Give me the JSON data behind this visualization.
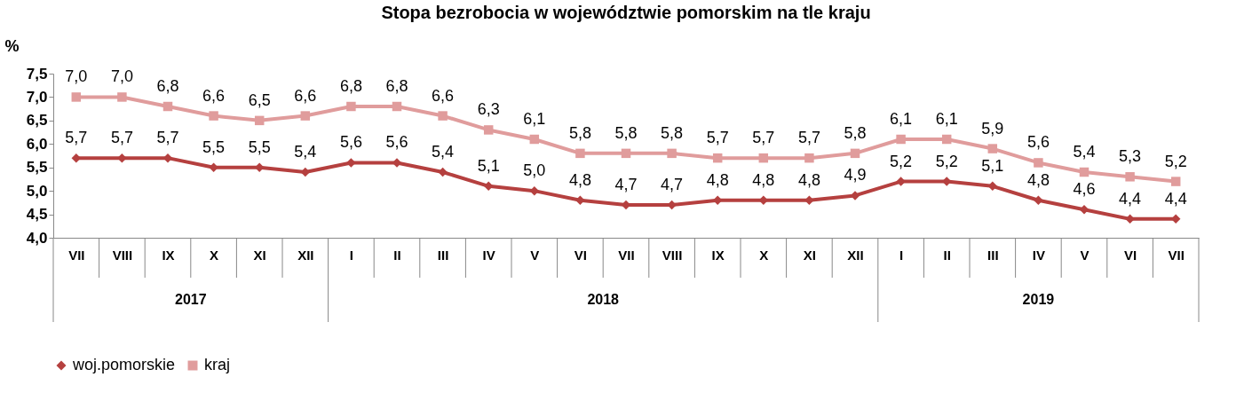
{
  "chart_data": {
    "type": "line",
    "title": "Stopa bezrobocia w województwie pomorskim na tle kraju",
    "ylabel": "%",
    "categories": [
      "VII",
      "VIII",
      "IX",
      "X",
      "XI",
      "XII",
      "I",
      "II",
      "III",
      "IV",
      "V",
      "VI",
      "VII",
      "VIII",
      "IX",
      "X",
      "XI",
      "XII",
      "I",
      "II",
      "III",
      "IV",
      "V",
      "VI",
      "VII"
    ],
    "annotations": [
      "2017",
      "2018",
      "2019"
    ],
    "series": [
      {
        "name": "woj.pomorskie",
        "color": "#b5403f",
        "marker": "diamond",
        "values": [
          5.7,
          5.7,
          5.7,
          5.5,
          5.5,
          5.4,
          5.6,
          5.6,
          5.4,
          5.1,
          5.0,
          4.8,
          4.7,
          4.7,
          4.8,
          4.8,
          4.8,
          4.9,
          5.2,
          5.2,
          5.1,
          4.8,
          4.6,
          4.4,
          4.4
        ],
        "value_labels": [
          "5,7",
          "5,7",
          "5,7",
          "5,5",
          "5,5",
          "5,4",
          "5,6",
          "5,6",
          "5,4",
          "5,1",
          "5,0",
          "4,8",
          "4,7",
          "4,7",
          "4,8",
          "4,8",
          "4,8",
          "4,9",
          "5,2",
          "5,2",
          "5,1",
          "4,8",
          "4,6",
          "4,4",
          "4,4"
        ]
      },
      {
        "name": "kraj",
        "color": "#e09c9c",
        "marker": "square",
        "values": [
          7.0,
          7.0,
          6.8,
          6.6,
          6.5,
          6.6,
          6.8,
          6.8,
          6.6,
          6.3,
          6.1,
          5.8,
          5.8,
          5.8,
          5.7,
          5.7,
          5.7,
          5.8,
          6.1,
          6.1,
          5.9,
          5.6,
          5.4,
          5.3,
          5.2
        ],
        "value_labels": [
          "7,0",
          "7,0",
          "6,8",
          "6,6",
          "6,5",
          "6,6",
          "6,8",
          "6,8",
          "6,6",
          "6,3",
          "6,1",
          "5,8",
          "5,8",
          "5,8",
          "5,7",
          "5,7",
          "5,7",
          "5,8",
          "6,1",
          "6,1",
          "5,9",
          "5,6",
          "5,4",
          "5,3",
          "5,2"
        ]
      }
    ],
    "ylim": [
      4.0,
      7.5
    ],
    "yticks": [
      {
        "value": 4.0,
        "label": "4,0"
      },
      {
        "value": 4.5,
        "label": "4,5"
      },
      {
        "value": 5.0,
        "label": "5,0"
      },
      {
        "value": 5.5,
        "label": "5,5"
      },
      {
        "value": 6.0,
        "label": "6,0"
      },
      {
        "value": 6.5,
        "label": "6,5"
      },
      {
        "value": 7.0,
        "label": "7,0"
      },
      {
        "value": 7.5,
        "label": "7,5"
      }
    ],
    "grid": false,
    "legend": "bottom",
    "line_style": "solid"
  }
}
